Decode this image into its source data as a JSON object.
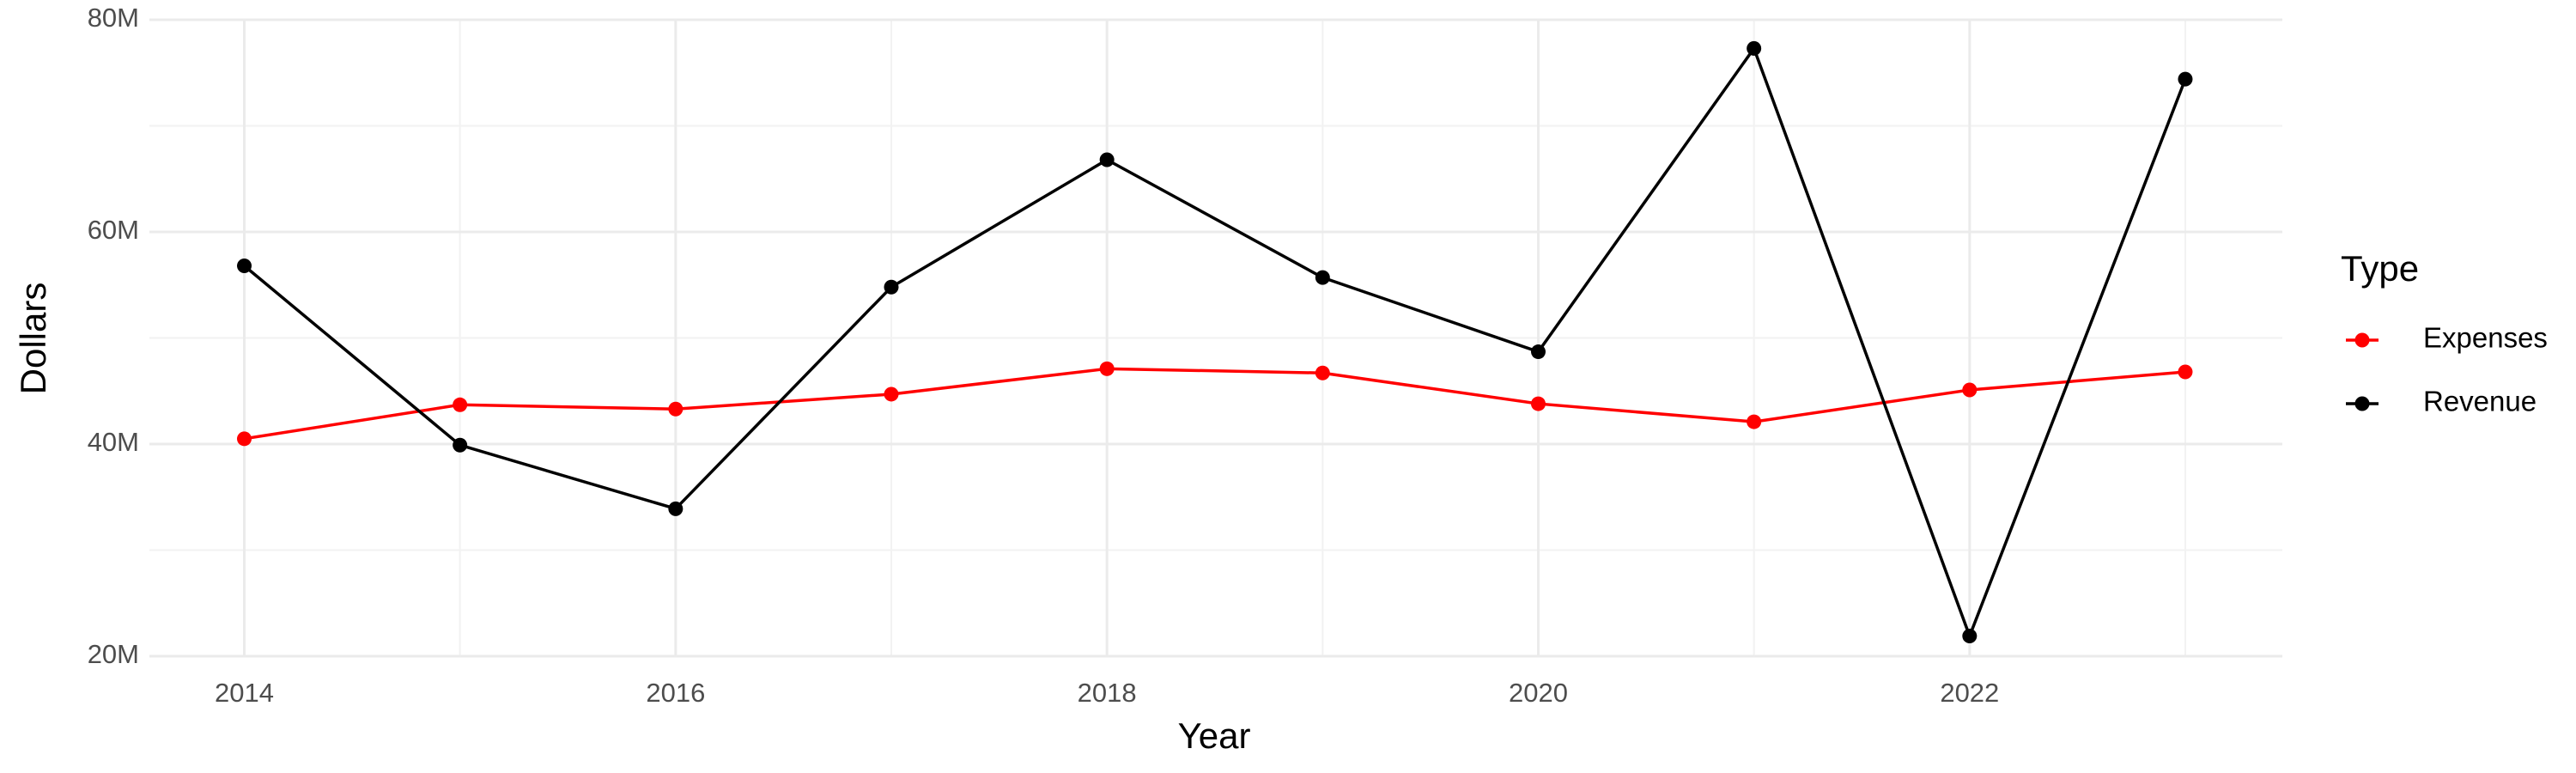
{
  "chart_data": {
    "type": "line",
    "x_label": "Year",
    "y_label": "Dollars",
    "legend_title": "Type",
    "legend_position": "right",
    "x": [
      2014,
      2015,
      2016,
      2017,
      2018,
      2019,
      2020,
      2021,
      2022,
      2023
    ],
    "series": [
      {
        "name": "Expenses",
        "color": "#ff0000",
        "values": [
          40500000,
          43700000,
          43300000,
          44700000,
          47100000,
          46700000,
          43800000,
          42100000,
          45100000,
          46800000
        ]
      },
      {
        "name": "Revenue",
        "color": "#000000",
        "values": [
          56800000,
          39900000,
          33900000,
          54800000,
          66800000,
          55700000,
          48700000,
          77300000,
          21900000,
          74400000
        ]
      }
    ],
    "xlim": [
      2013.56,
      2023.45
    ],
    "xticks": [
      2014,
      2016,
      2018,
      2020,
      2022
    ],
    "ylim": [
      20000000,
      80000000
    ],
    "yticks": [
      {
        "value": 20000000,
        "label": "20M"
      },
      {
        "value": 40000000,
        "label": "40M"
      },
      {
        "value": 60000000,
        "label": "60M"
      },
      {
        "value": 80000000,
        "label": "80M"
      }
    ],
    "grid": true
  }
}
